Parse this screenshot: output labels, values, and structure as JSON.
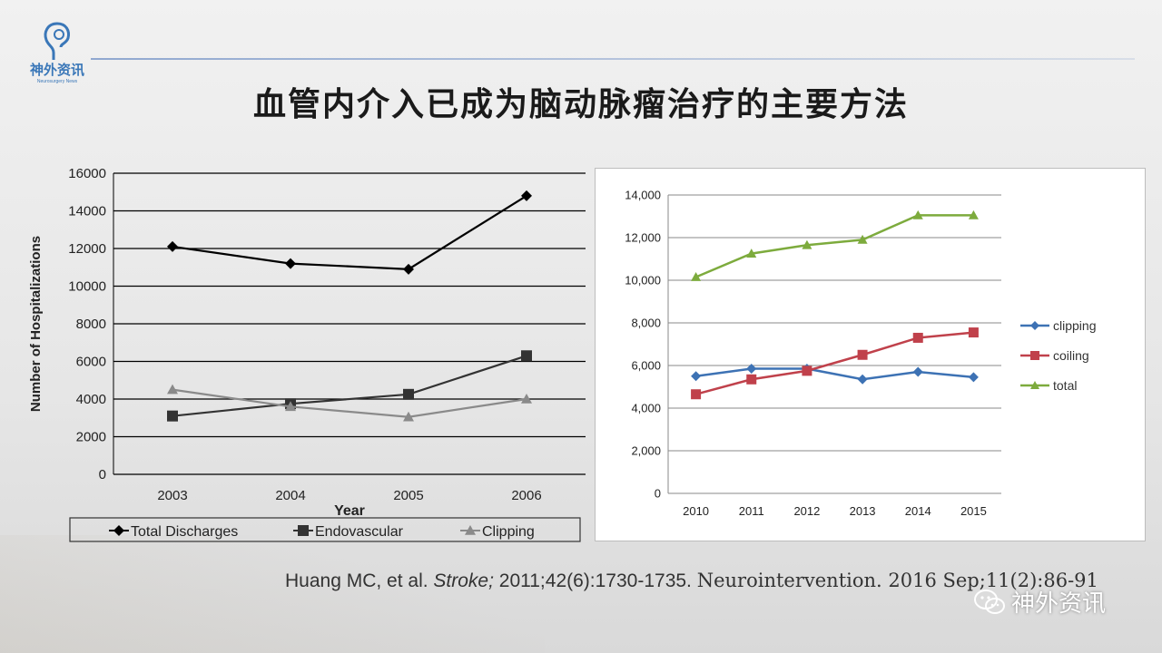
{
  "logo": {
    "text": "神外资讯",
    "sub": "Neurosurgery News"
  },
  "slide": {
    "title": "血管内介入已成为脑动脉瘤治疗的主要方法"
  },
  "citation": {
    "part1": "Huang MC, et al. ",
    "journal": "Stroke;",
    "part2": " 2011;42(6):1730-1735. ",
    "part3": "Neurointervention. 2016 Sep;11(2):86-91"
  },
  "watermark": {
    "text": "神外资讯",
    "icon": "wechat-icon"
  },
  "chart_data": [
    {
      "type": "line",
      "title": "",
      "xlabel": "Year",
      "ylabel": "Number of Hospitalizations",
      "categories": [
        "2003",
        "2004",
        "2005",
        "2006"
      ],
      "ylim": [
        0,
        16000
      ],
      "yticks": [
        "0",
        "2000",
        "4000",
        "6000",
        "8000",
        "10000",
        "12000",
        "14000",
        "16000"
      ],
      "grid": true,
      "legend": "bottom",
      "series": [
        {
          "name": "Total Discharges",
          "values": [
            12100,
            11200,
            10900,
            14800
          ],
          "color": "#000000",
          "marker": "diamond"
        },
        {
          "name": "Endovascular",
          "values": [
            3100,
            3750,
            4250,
            6300
          ],
          "color": "#333333",
          "marker": "square"
        },
        {
          "name": "Clipping",
          "values": [
            4500,
            3600,
            3050,
            4000
          ],
          "color": "#8a8a8a",
          "marker": "triangle"
        }
      ]
    },
    {
      "type": "line",
      "title": "",
      "xlabel": "",
      "ylabel": "",
      "categories": [
        "2010",
        "2011",
        "2012",
        "2013",
        "2014",
        "2015"
      ],
      "ylim": [
        0,
        14000
      ],
      "yticks": [
        "0",
        "2,000",
        "4,000",
        "6,000",
        "8,000",
        "10,000",
        "12,000",
        "14,000"
      ],
      "grid": true,
      "legend": "right",
      "series": [
        {
          "name": "clipping",
          "values": [
            5500,
            5850,
            5850,
            5350,
            5700,
            5450
          ],
          "color": "#3d72b4",
          "marker": "diamond"
        },
        {
          "name": "coiling",
          "values": [
            4650,
            5350,
            5750,
            6500,
            7300,
            7550
          ],
          "color": "#c0414b",
          "marker": "square"
        },
        {
          "name": "total",
          "values": [
            10150,
            11250,
            11650,
            11900,
            13050,
            13050
          ],
          "color": "#7dab3d",
          "marker": "triangle"
        }
      ]
    }
  ]
}
